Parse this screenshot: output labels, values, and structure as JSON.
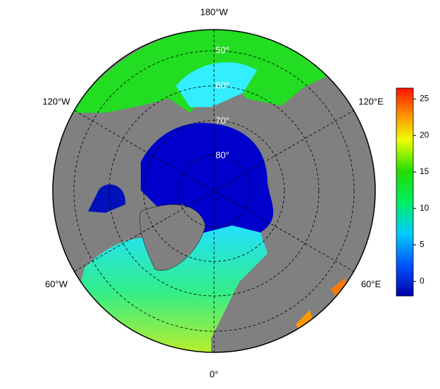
{
  "longitude_labels": [
    "180°W",
    "120°W",
    "120°E",
    "60°W",
    "60°E",
    "0°"
  ],
  "latitude_labels": [
    "50°",
    "60°",
    "70°",
    "80°"
  ],
  "colorbar": {
    "lim": [
      -2,
      26.5
    ],
    "ticks": [
      0,
      5,
      10,
      15,
      20,
      25
    ]
  }
}
